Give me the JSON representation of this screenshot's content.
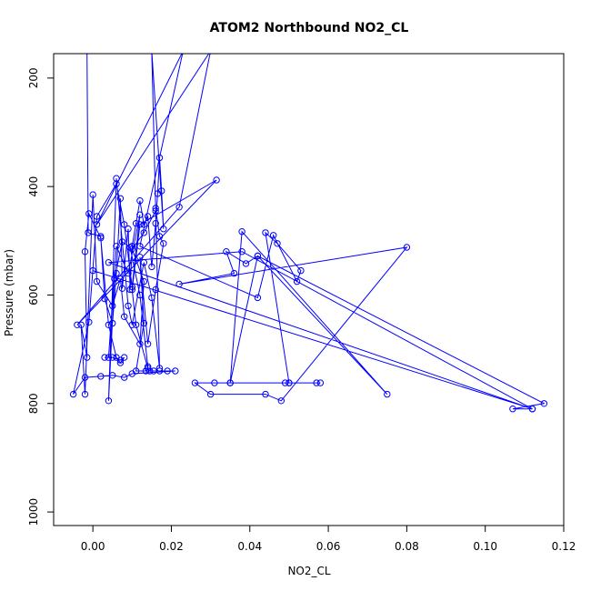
{
  "chart_data": {
    "type": "scatter",
    "title": "ATOM2 Northbound NO2_CL",
    "xlabel": "NO2_CL",
    "ylabel": "Pressure (mbar)",
    "xlim": [
      -0.01,
      0.12
    ],
    "ylim": [
      1025,
      155
    ],
    "y_reversed": true,
    "x_ticks": [
      0.0,
      0.02,
      0.04,
      0.06,
      0.08,
      0.1,
      0.12
    ],
    "x_tick_labels": [
      "0.00",
      "0.02",
      "0.04",
      "0.06",
      "0.08",
      "0.10",
      "0.12"
    ],
    "y_ticks": [
      200,
      400,
      600,
      800,
      1000
    ],
    "y_tick_labels": [
      "200",
      "400",
      "600",
      "800",
      "1000"
    ],
    "grid": false,
    "legend": "none",
    "series": [
      {
        "color": "#0000ff",
        "marker": "open-circle",
        "connected": true,
        "points": [
          [
            -0.0015,
            150
          ],
          [
            -0.0012,
            485
          ],
          [
            0.002,
            492
          ],
          [
            0.003,
            607
          ],
          [
            0.005,
            652
          ],
          [
            0.006,
            560
          ],
          [
            0.007,
            422
          ],
          [
            0.0075,
            588
          ],
          [
            0.009,
            478
          ],
          [
            0.0095,
            590
          ],
          [
            0.01,
            510
          ],
          [
            0.011,
            468
          ],
          [
            0.012,
            426
          ],
          [
            0.013,
            470
          ],
          [
            0.014,
            455
          ],
          [
            0.015,
            548
          ],
          [
            0.016,
            468
          ],
          [
            0.0165,
            413
          ],
          [
            0.017,
            347
          ],
          [
            0.0175,
            408
          ],
          [
            0.018,
            478
          ],
          [
            0.015,
            150
          ],
          [
            0.016,
            440
          ],
          [
            0.017,
            492
          ],
          [
            0.018,
            505
          ],
          [
            0.016,
            590
          ],
          [
            0.014,
            690
          ],
          [
            0.012,
            530
          ],
          [
            0.013,
            652
          ],
          [
            0.011,
            740
          ],
          [
            0.0135,
            740
          ],
          [
            0.0145,
            740
          ],
          [
            0.0155,
            740
          ],
          [
            0.017,
            740
          ],
          [
            0.019,
            740
          ],
          [
            0.021,
            740
          ],
          [
            0.01,
            745
          ],
          [
            0.008,
            752
          ],
          [
            0.005,
            748
          ],
          [
            0.002,
            750
          ],
          [
            -0.002,
            752
          ],
          [
            -0.005,
            783
          ],
          [
            -0.001,
            650
          ],
          [
            0.001,
            455
          ],
          [
            0.006,
            395
          ],
          [
            0.008,
            470
          ],
          [
            0.01,
            585
          ],
          [
            0.012,
            452
          ],
          [
            0.009,
            560
          ],
          [
            0.006,
            510
          ],
          [
            0.004,
            715
          ],
          [
            0.003,
            715
          ],
          [
            0.005,
            715
          ],
          [
            0.007,
            720
          ],
          [
            0.008,
            715
          ],
          [
            0.007,
            725
          ],
          [
            0.006,
            715
          ],
          [
            0.004,
            655
          ],
          [
            0.002,
            495
          ],
          [
            -0.001,
            450
          ],
          [
            -0.002,
            520
          ],
          [
            -0.0015,
            715
          ],
          [
            -0.003,
            655
          ],
          [
            -0.002,
            783
          ],
          [
            0.0,
            415
          ],
          [
            0.001,
            575
          ],
          [
            0.005,
            620
          ],
          [
            0.007,
            570
          ],
          [
            0.008,
            640
          ],
          [
            0.012,
            690
          ],
          [
            0.013,
            575
          ],
          [
            0.01,
            515
          ],
          [
            0.013,
            485
          ],
          [
            0.016,
            445
          ],
          [
            0.017,
            735
          ],
          [
            0.015,
            605
          ],
          [
            0.013,
            540
          ],
          [
            0.01,
            655
          ],
          [
            0.009,
            620
          ],
          [
            0.006,
            385
          ],
          [
            0.004,
            795
          ],
          [
            0.0055,
            570
          ],
          [
            0.0075,
            502
          ],
          [
            0.0095,
            512
          ],
          [
            0.012,
            600
          ],
          [
            0.014,
            732
          ],
          [
            0.014,
            735
          ],
          [
            0.011,
            655
          ],
          [
            0.01,
            590
          ],
          [
            0.012,
            470
          ],
          [
            0.0315,
            388
          ],
          [
            -0.004,
            655
          ],
          [
            0.022,
            438
          ],
          [
            0.03,
            150
          ],
          [
            0.001,
            470
          ],
          [
            0.023,
            150
          ],
          [
            0.012,
            510
          ],
          [
            0.042,
            605
          ],
          [
            0.046,
            490
          ],
          [
            0.052,
            575
          ],
          [
            0.053,
            555
          ],
          [
            0.047,
            505
          ],
          [
            0.044,
            485
          ],
          [
            0.05,
            762
          ],
          [
            0.049,
            762
          ],
          [
            0.058,
            762
          ],
          [
            0.057,
            762
          ],
          [
            0.05,
            762
          ],
          [
            0.035,
            762
          ],
          [
            0.031,
            762
          ],
          [
            0.026,
            762
          ],
          [
            0.03,
            783
          ],
          [
            0.044,
            783
          ],
          [
            0.048,
            795
          ],
          [
            0.08,
            512
          ],
          [
            0.022,
            580
          ],
          [
            0.036,
            560
          ],
          [
            0.034,
            520
          ],
          [
            0.039,
            542
          ],
          [
            0.042,
            528
          ],
          [
            0.075,
            783
          ],
          [
            0.038,
            483
          ],
          [
            0.035,
            762
          ],
          [
            0.042,
            528
          ],
          [
            0.115,
            800
          ],
          [
            0.107,
            810
          ],
          [
            0.112,
            810
          ],
          [
            0.038,
            520
          ],
          [
            0.004,
            540
          ],
          [
            0.112,
            810
          ],
          [
            0.0,
            555
          ]
        ]
      }
    ]
  }
}
